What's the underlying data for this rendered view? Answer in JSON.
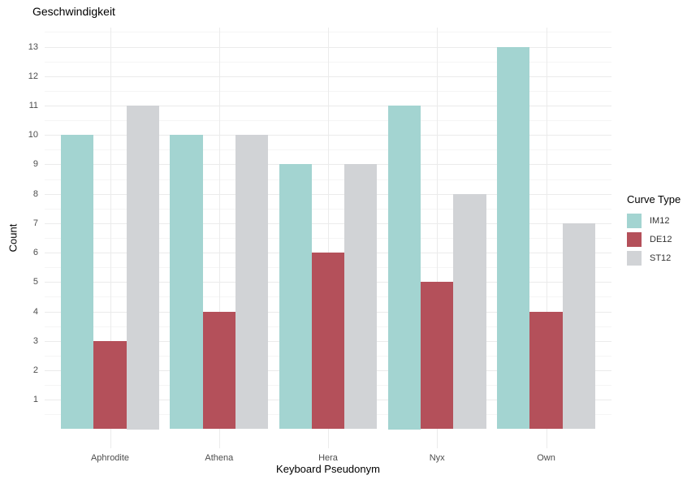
{
  "chart_data": {
    "type": "bar",
    "title": "Geschwindigkeit",
    "xlabel": "Keyboard Pseudonym",
    "ylabel": "Count",
    "legend_title": "Curve Type",
    "legend_position": "right",
    "categories": [
      "Aphrodite",
      "Athena",
      "Hera",
      "Nyx",
      "Own"
    ],
    "series": [
      {
        "name": "IM12",
        "color": "#A3D4D1",
        "values": [
          10,
          10,
          9,
          11,
          13
        ]
      },
      {
        "name": "DE12",
        "color": "#B4505A",
        "values": [
          3,
          4,
          6,
          5,
          4
        ]
      },
      {
        "name": "ST12",
        "color": "#D1D3D6",
        "values": [
          11,
          10,
          9,
          8,
          7
        ]
      }
    ],
    "y_ticks": [
      1,
      2,
      3,
      4,
      5,
      6,
      7,
      8,
      9,
      10,
      11,
      12,
      13
    ],
    "ylim": [
      -0.65,
      13.65
    ],
    "grid": {
      "major_color": "#EBEBEB",
      "minor_color": "#F5F5F5"
    },
    "background": "#FFFFFF"
  }
}
